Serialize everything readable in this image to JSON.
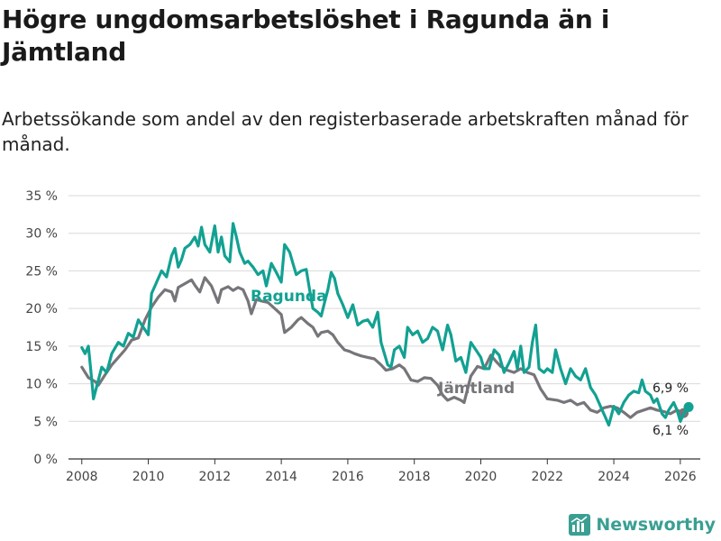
{
  "title": "Högre ungdomsarbetslöshet i Ragunda än i Jämtland",
  "subtitle": "Arbetssökande som andel av den registerbaserade arbetskraften månad för månad.",
  "brand": "Newsworthy",
  "colors": {
    "ragunda": "#12a192",
    "jamtland": "#77757a",
    "grid": "#d9d9d9"
  },
  "chart_data": {
    "type": "line",
    "title": "Högre ungdomsarbetslöshet i Ragunda än i Jämtland",
    "xlabel": "",
    "ylabel": "",
    "xlim": [
      2007.6,
      2026.6
    ],
    "ylim": [
      0,
      35
    ],
    "y_ticks": [
      {
        "value": 0,
        "label": "0 %"
      },
      {
        "value": 5,
        "label": "5 %"
      },
      {
        "value": 10,
        "label": "10 %"
      },
      {
        "value": 15,
        "label": "15 %"
      },
      {
        "value": 20,
        "label": "20 %"
      },
      {
        "value": 25,
        "label": "25 %"
      },
      {
        "value": 30,
        "label": "30 %"
      },
      {
        "value": 35,
        "label": "35 %"
      }
    ],
    "x_ticks": [
      {
        "value": 2008,
        "label": "2008"
      },
      {
        "value": 2010,
        "label": "2010"
      },
      {
        "value": 2012,
        "label": "2012"
      },
      {
        "value": 2014,
        "label": "2014"
      },
      {
        "value": 2016,
        "label": "2016"
      },
      {
        "value": 2018,
        "label": "2018"
      },
      {
        "value": 2020,
        "label": "2020"
      },
      {
        "value": 2022,
        "label": "2022"
      },
      {
        "value": 2024,
        "label": "2024"
      },
      {
        "value": 2026,
        "label": "2026"
      }
    ],
    "series": [
      {
        "name": "Jämtland",
        "label": "Jämtland",
        "end_label": "6,1 %",
        "color": "#77757a",
        "points": [
          [
            2008.0,
            12.2
          ],
          [
            2008.2,
            10.8
          ],
          [
            2008.4,
            10.3
          ],
          [
            2008.5,
            9.8
          ],
          [
            2008.7,
            11.2
          ],
          [
            2008.9,
            12.5
          ],
          [
            2009.1,
            13.5
          ],
          [
            2009.3,
            14.5
          ],
          [
            2009.5,
            15.8
          ],
          [
            2009.7,
            16.1
          ],
          [
            2009.9,
            18.5
          ],
          [
            2010.1,
            20.2
          ],
          [
            2010.3,
            21.5
          ],
          [
            2010.5,
            22.5
          ],
          [
            2010.7,
            22.2
          ],
          [
            2010.8,
            21.0
          ],
          [
            2010.9,
            22.8
          ],
          [
            2011.1,
            23.3
          ],
          [
            2011.3,
            23.8
          ],
          [
            2011.4,
            23.1
          ],
          [
            2011.55,
            22.2
          ],
          [
            2011.7,
            24.1
          ],
          [
            2011.9,
            23.0
          ],
          [
            2012.1,
            20.8
          ],
          [
            2012.2,
            22.5
          ],
          [
            2012.4,
            22.9
          ],
          [
            2012.55,
            22.4
          ],
          [
            2012.7,
            22.8
          ],
          [
            2012.85,
            22.5
          ],
          [
            2013.0,
            21.0
          ],
          [
            2013.1,
            19.3
          ],
          [
            2013.25,
            21.2
          ],
          [
            2013.4,
            21.0
          ],
          [
            2013.6,
            20.8
          ],
          [
            2013.8,
            20.0
          ],
          [
            2014.0,
            19.2
          ],
          [
            2014.1,
            16.8
          ],
          [
            2014.3,
            17.5
          ],
          [
            2014.5,
            18.5
          ],
          [
            2014.6,
            18.8
          ],
          [
            2014.8,
            18.0
          ],
          [
            2014.95,
            17.5
          ],
          [
            2015.1,
            16.3
          ],
          [
            2015.2,
            16.8
          ],
          [
            2015.4,
            17.0
          ],
          [
            2015.55,
            16.5
          ],
          [
            2015.7,
            15.5
          ],
          [
            2015.9,
            14.5
          ],
          [
            2016.05,
            14.3
          ],
          [
            2016.2,
            14.0
          ],
          [
            2016.4,
            13.7
          ],
          [
            2016.6,
            13.5
          ],
          [
            2016.8,
            13.3
          ],
          [
            2017.0,
            12.5
          ],
          [
            2017.15,
            11.8
          ],
          [
            2017.35,
            12.0
          ],
          [
            2017.55,
            12.5
          ],
          [
            2017.7,
            12.0
          ],
          [
            2017.9,
            10.5
          ],
          [
            2018.1,
            10.3
          ],
          [
            2018.3,
            10.8
          ],
          [
            2018.5,
            10.7
          ],
          [
            2018.7,
            9.8
          ],
          [
            2018.85,
            8.5
          ],
          [
            2019.0,
            7.8
          ],
          [
            2019.2,
            8.2
          ],
          [
            2019.4,
            7.8
          ],
          [
            2019.5,
            7.5
          ],
          [
            2019.7,
            11.0
          ],
          [
            2019.9,
            12.3
          ],
          [
            2020.1,
            12.0
          ],
          [
            2020.3,
            13.8
          ],
          [
            2020.45,
            13.0
          ],
          [
            2020.6,
            12.3
          ],
          [
            2020.8,
            11.8
          ],
          [
            2021.0,
            11.5
          ],
          [
            2021.2,
            12.0
          ],
          [
            2021.4,
            11.5
          ],
          [
            2021.6,
            11.2
          ],
          [
            2021.8,
            9.3
          ],
          [
            2022.0,
            8.0
          ],
          [
            2022.3,
            7.8
          ],
          [
            2022.5,
            7.5
          ],
          [
            2022.7,
            7.8
          ],
          [
            2022.9,
            7.2
          ],
          [
            2023.1,
            7.5
          ],
          [
            2023.3,
            6.5
          ],
          [
            2023.5,
            6.2
          ],
          [
            2023.7,
            6.8
          ],
          [
            2023.9,
            7.0
          ],
          [
            2024.1,
            6.8
          ],
          [
            2024.3,
            6.2
          ],
          [
            2024.5,
            5.5
          ],
          [
            2024.7,
            6.2
          ],
          [
            2024.9,
            6.5
          ],
          [
            2025.1,
            6.8
          ],
          [
            2025.3,
            6.5
          ],
          [
            2025.5,
            6.3
          ],
          [
            2025.7,
            6.0
          ],
          [
            2025.9,
            6.5
          ],
          [
            2026.1,
            6.1
          ]
        ]
      },
      {
        "name": "Ragunda",
        "label": "Ragunda",
        "end_label": "6,9 %",
        "color": "#12a192",
        "points": [
          [
            2008.0,
            14.8
          ],
          [
            2008.1,
            14.0
          ],
          [
            2008.2,
            15.0
          ],
          [
            2008.3,
            10.5
          ],
          [
            2008.35,
            8.0
          ],
          [
            2008.5,
            10.5
          ],
          [
            2008.6,
            12.2
          ],
          [
            2008.75,
            11.5
          ],
          [
            2008.9,
            14.0
          ],
          [
            2009.1,
            15.5
          ],
          [
            2009.25,
            15.0
          ],
          [
            2009.4,
            16.7
          ],
          [
            2009.55,
            16.2
          ],
          [
            2009.7,
            18.5
          ],
          [
            2009.85,
            17.5
          ],
          [
            2010.0,
            16.5
          ],
          [
            2010.1,
            22.0
          ],
          [
            2010.25,
            23.5
          ],
          [
            2010.4,
            25.0
          ],
          [
            2010.55,
            24.2
          ],
          [
            2010.7,
            27.0
          ],
          [
            2010.8,
            28.0
          ],
          [
            2010.9,
            25.5
          ],
          [
            2011.0,
            26.5
          ],
          [
            2011.1,
            28.0
          ],
          [
            2011.25,
            28.5
          ],
          [
            2011.4,
            29.5
          ],
          [
            2011.5,
            28.3
          ],
          [
            2011.6,
            30.8
          ],
          [
            2011.7,
            28.5
          ],
          [
            2011.85,
            27.5
          ],
          [
            2012.0,
            31.0
          ],
          [
            2012.1,
            27.5
          ],
          [
            2012.2,
            29.5
          ],
          [
            2012.3,
            27.0
          ],
          [
            2012.45,
            26.2
          ],
          [
            2012.55,
            31.3
          ],
          [
            2012.65,
            29.5
          ],
          [
            2012.75,
            27.5
          ],
          [
            2012.9,
            26.0
          ],
          [
            2013.0,
            26.3
          ],
          [
            2013.15,
            25.5
          ],
          [
            2013.3,
            24.5
          ],
          [
            2013.45,
            25.0
          ],
          [
            2013.55,
            23.0
          ],
          [
            2013.7,
            26.0
          ],
          [
            2013.85,
            24.8
          ],
          [
            2014.0,
            23.5
          ],
          [
            2014.1,
            28.5
          ],
          [
            2014.25,
            27.5
          ],
          [
            2014.35,
            26.0
          ],
          [
            2014.45,
            24.5
          ],
          [
            2014.6,
            25.0
          ],
          [
            2014.75,
            25.2
          ],
          [
            2014.85,
            22.5
          ],
          [
            2014.95,
            20.0
          ],
          [
            2015.1,
            19.5
          ],
          [
            2015.2,
            19.0
          ],
          [
            2015.3,
            20.8
          ],
          [
            2015.4,
            22.5
          ],
          [
            2015.5,
            24.8
          ],
          [
            2015.6,
            24.0
          ],
          [
            2015.7,
            22.0
          ],
          [
            2015.85,
            20.5
          ],
          [
            2016.0,
            18.8
          ],
          [
            2016.15,
            20.5
          ],
          [
            2016.3,
            17.8
          ],
          [
            2016.45,
            18.3
          ],
          [
            2016.6,
            18.5
          ],
          [
            2016.75,
            17.5
          ],
          [
            2016.9,
            19.5
          ],
          [
            2017.0,
            15.5
          ],
          [
            2017.1,
            14.0
          ],
          [
            2017.2,
            12.5
          ],
          [
            2017.3,
            12.2
          ],
          [
            2017.4,
            14.5
          ],
          [
            2017.55,
            15.0
          ],
          [
            2017.7,
            13.5
          ],
          [
            2017.8,
            17.5
          ],
          [
            2017.95,
            16.5
          ],
          [
            2018.1,
            17.0
          ],
          [
            2018.25,
            15.5
          ],
          [
            2018.4,
            16.0
          ],
          [
            2018.55,
            17.5
          ],
          [
            2018.7,
            17.0
          ],
          [
            2018.85,
            14.5
          ],
          [
            2019.0,
            17.8
          ],
          [
            2019.1,
            16.5
          ],
          [
            2019.25,
            13.0
          ],
          [
            2019.4,
            13.5
          ],
          [
            2019.55,
            11.5
          ],
          [
            2019.7,
            15.5
          ],
          [
            2019.85,
            14.5
          ],
          [
            2020.0,
            13.5
          ],
          [
            2020.1,
            12.0
          ],
          [
            2020.25,
            12.0
          ],
          [
            2020.4,
            14.5
          ],
          [
            2020.55,
            13.8
          ],
          [
            2020.7,
            11.5
          ],
          [
            2020.85,
            12.8
          ],
          [
            2021.0,
            14.3
          ],
          [
            2021.1,
            12.0
          ],
          [
            2021.2,
            15.0
          ],
          [
            2021.3,
            11.5
          ],
          [
            2021.45,
            12.2
          ],
          [
            2021.55,
            15.5
          ],
          [
            2021.65,
            17.8
          ],
          [
            2021.75,
            12.0
          ],
          [
            2021.9,
            11.5
          ],
          [
            2022.0,
            12.0
          ],
          [
            2022.15,
            11.5
          ],
          [
            2022.25,
            14.5
          ],
          [
            2022.4,
            12.0
          ],
          [
            2022.55,
            10.0
          ],
          [
            2022.7,
            12.0
          ],
          [
            2022.85,
            11.0
          ],
          [
            2023.0,
            10.5
          ],
          [
            2023.15,
            12.0
          ],
          [
            2023.3,
            9.5
          ],
          [
            2023.45,
            8.5
          ],
          [
            2023.6,
            7.0
          ],
          [
            2023.75,
            5.5
          ],
          [
            2023.85,
            4.5
          ],
          [
            2024.0,
            7.0
          ],
          [
            2024.15,
            6.0
          ],
          [
            2024.3,
            7.5
          ],
          [
            2024.45,
            8.5
          ],
          [
            2024.6,
            9.0
          ],
          [
            2024.75,
            8.8
          ],
          [
            2024.85,
            10.5
          ],
          [
            2024.95,
            9.0
          ],
          [
            2025.1,
            8.5
          ],
          [
            2025.2,
            7.5
          ],
          [
            2025.3,
            8.0
          ],
          [
            2025.45,
            6.0
          ],
          [
            2025.55,
            5.5
          ],
          [
            2025.65,
            6.5
          ],
          [
            2025.8,
            7.5
          ],
          [
            2025.9,
            6.5
          ],
          [
            2026.0,
            5.0
          ],
          [
            2026.1,
            6.0
          ],
          [
            2026.25,
            6.9
          ]
        ]
      }
    ]
  }
}
